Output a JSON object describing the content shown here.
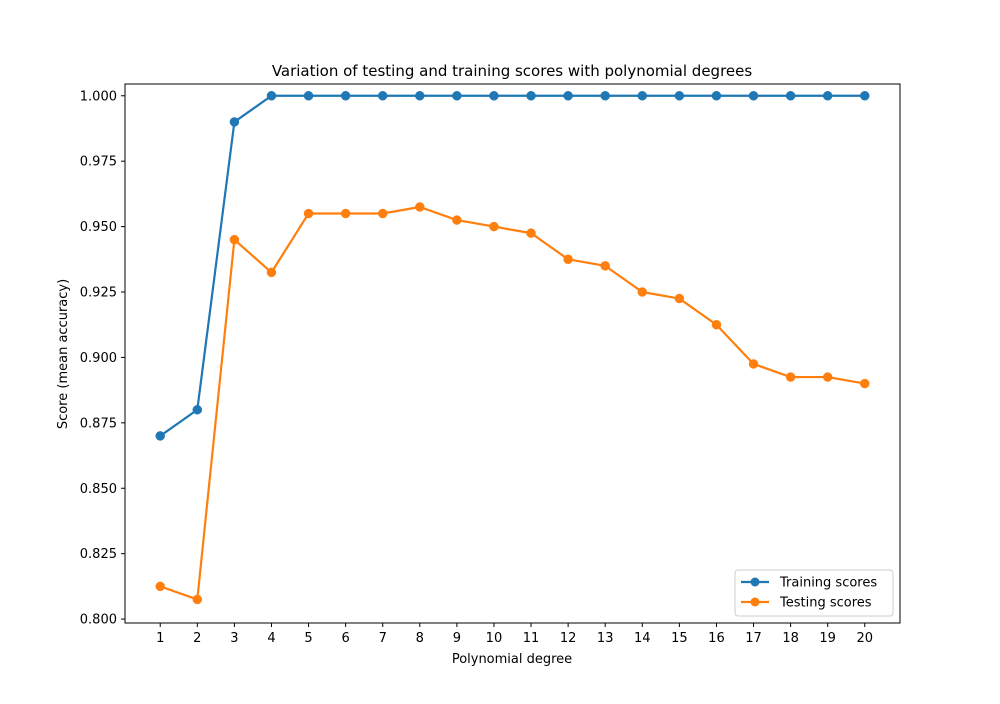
{
  "chart_data": {
    "type": "line",
    "title": "Variation of testing and training scores with polynomial degrees",
    "xlabel": "Polynomial degree",
    "ylabel": "Score (mean accuracy)",
    "x": [
      1,
      2,
      3,
      4,
      5,
      6,
      7,
      8,
      9,
      10,
      11,
      12,
      13,
      14,
      15,
      16,
      17,
      18,
      19,
      20
    ],
    "xlim": [
      0.05,
      20.95
    ],
    "ylim": [
      0.7985,
      1.0045
    ],
    "y_ticks": [
      "0.800",
      "0.825",
      "0.850",
      "0.875",
      "0.900",
      "0.925",
      "0.950",
      "0.975",
      "1.000"
    ],
    "x_ticks": [
      "1",
      "2",
      "3",
      "4",
      "5",
      "6",
      "7",
      "8",
      "9",
      "10",
      "11",
      "12",
      "13",
      "14",
      "15",
      "16",
      "17",
      "18",
      "19",
      "20"
    ],
    "series": [
      {
        "name": "Training scores",
        "color": "#1f77b4",
        "values": [
          0.87,
          0.88,
          0.99,
          1.0,
          1.0,
          1.0,
          1.0,
          1.0,
          1.0,
          1.0,
          1.0,
          1.0,
          1.0,
          1.0,
          1.0,
          1.0,
          1.0,
          1.0,
          1.0,
          1.0
        ]
      },
      {
        "name": "Testing scores",
        "color": "#ff7f0e",
        "values": [
          0.8125,
          0.8075,
          0.945,
          0.9325,
          0.955,
          0.955,
          0.955,
          0.9575,
          0.9525,
          0.95,
          0.9475,
          0.9375,
          0.935,
          0.925,
          0.9225,
          0.9125,
          0.8975,
          0.8925,
          0.8925,
          0.89
        ]
      }
    ],
    "grid": false,
    "legend_position": "lower-right"
  }
}
